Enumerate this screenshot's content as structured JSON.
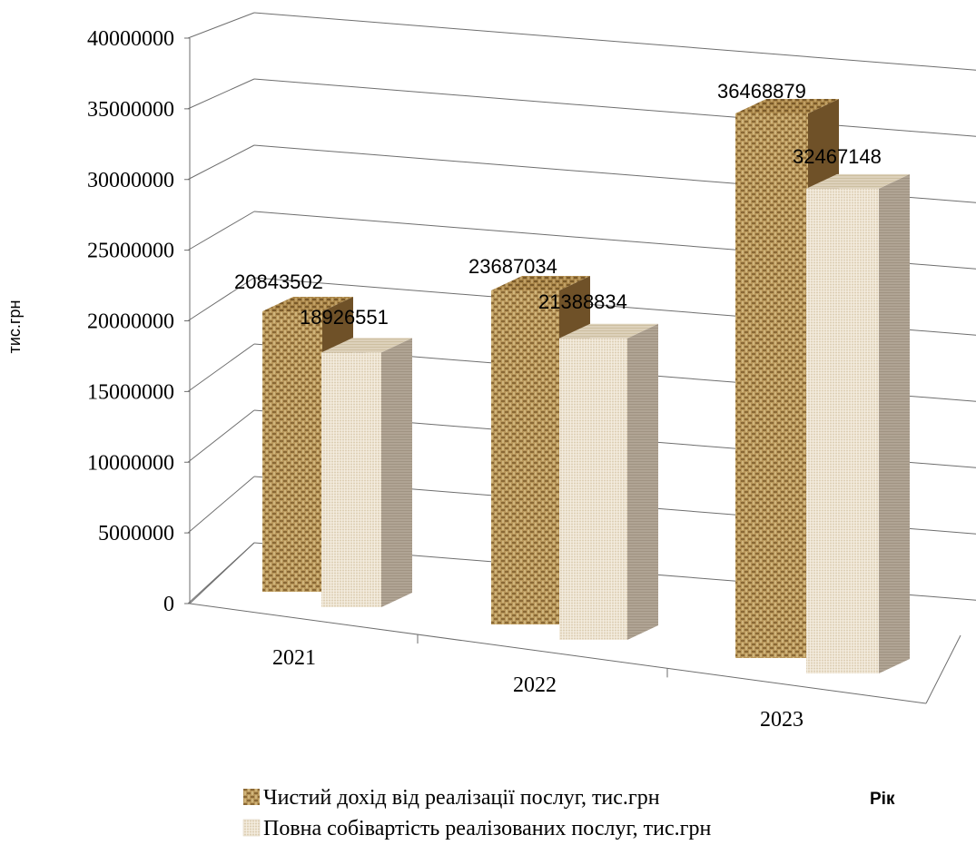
{
  "chart_data": {
    "type": "bar",
    "three_d": true,
    "categories": [
      "2021",
      "2022",
      "2023"
    ],
    "series": [
      {
        "name": "Чистий дохід від реалізації послуг, тис.грн",
        "values": [
          20843502,
          23687034,
          36468879
        ],
        "color": "#b89a5a"
      },
      {
        "name": "Повна собівартість реалізованих послуг, тис.грн",
        "values": [
          18926551,
          21388834,
          32467148
        ],
        "color": "#e8dcc8"
      }
    ],
    "data_labels": [
      [
        "20843502",
        "23687034",
        "36468879"
      ],
      [
        "18926551",
        "21388834",
        "32467148"
      ]
    ],
    "ylabel": "тис.грн",
    "xlabel": "Рік",
    "ylim": [
      0,
      40000000
    ],
    "yticks": [
      "0",
      "5000000",
      "10000000",
      "15000000",
      "20000000",
      "25000000",
      "30000000",
      "35000000",
      "40000000"
    ],
    "grid": true,
    "legend_position": "bottom"
  }
}
